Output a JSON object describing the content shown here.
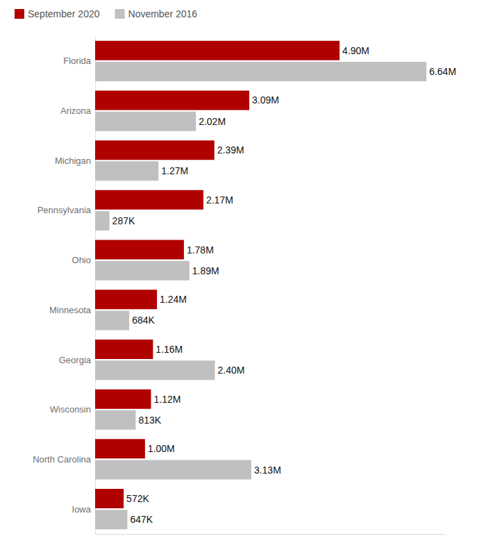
{
  "chart_data": {
    "type": "bar",
    "orientation": "horizontal",
    "categories": [
      "Florida",
      "Arizona",
      "Michigan",
      "Pennsylvania",
      "Ohio",
      "Minnesota",
      "Georgia",
      "Wisconsin",
      "North Carolina",
      "Iowa"
    ],
    "series": [
      {
        "name": "September 2020",
        "color": "#b00000",
        "values": [
          4900000,
          3090000,
          2390000,
          2170000,
          1780000,
          1240000,
          1160000,
          1120000,
          1000000,
          572000
        ],
        "value_labels": [
          "4.90M",
          "3.09M",
          "2.39M",
          "2.17M",
          "1.78M",
          "1.24M",
          "1.16M",
          "1.12M",
          "1.00M",
          "572K"
        ]
      },
      {
        "name": "November 2016",
        "color": "#c0c0c0",
        "values": [
          6640000,
          2020000,
          1270000,
          287000,
          1890000,
          684000,
          2400000,
          813000,
          3130000,
          647000
        ],
        "value_labels": [
          "6.64M",
          "2.02M",
          "1.27M",
          "287K",
          "1.89M",
          "684K",
          "2.40M",
          "813K",
          "3.13M",
          "647K"
        ]
      }
    ],
    "xlim": [
      0,
      7000000
    ],
    "legend": "top-left",
    "data_labels": true,
    "tick_labels": "y",
    "grid": false
  }
}
